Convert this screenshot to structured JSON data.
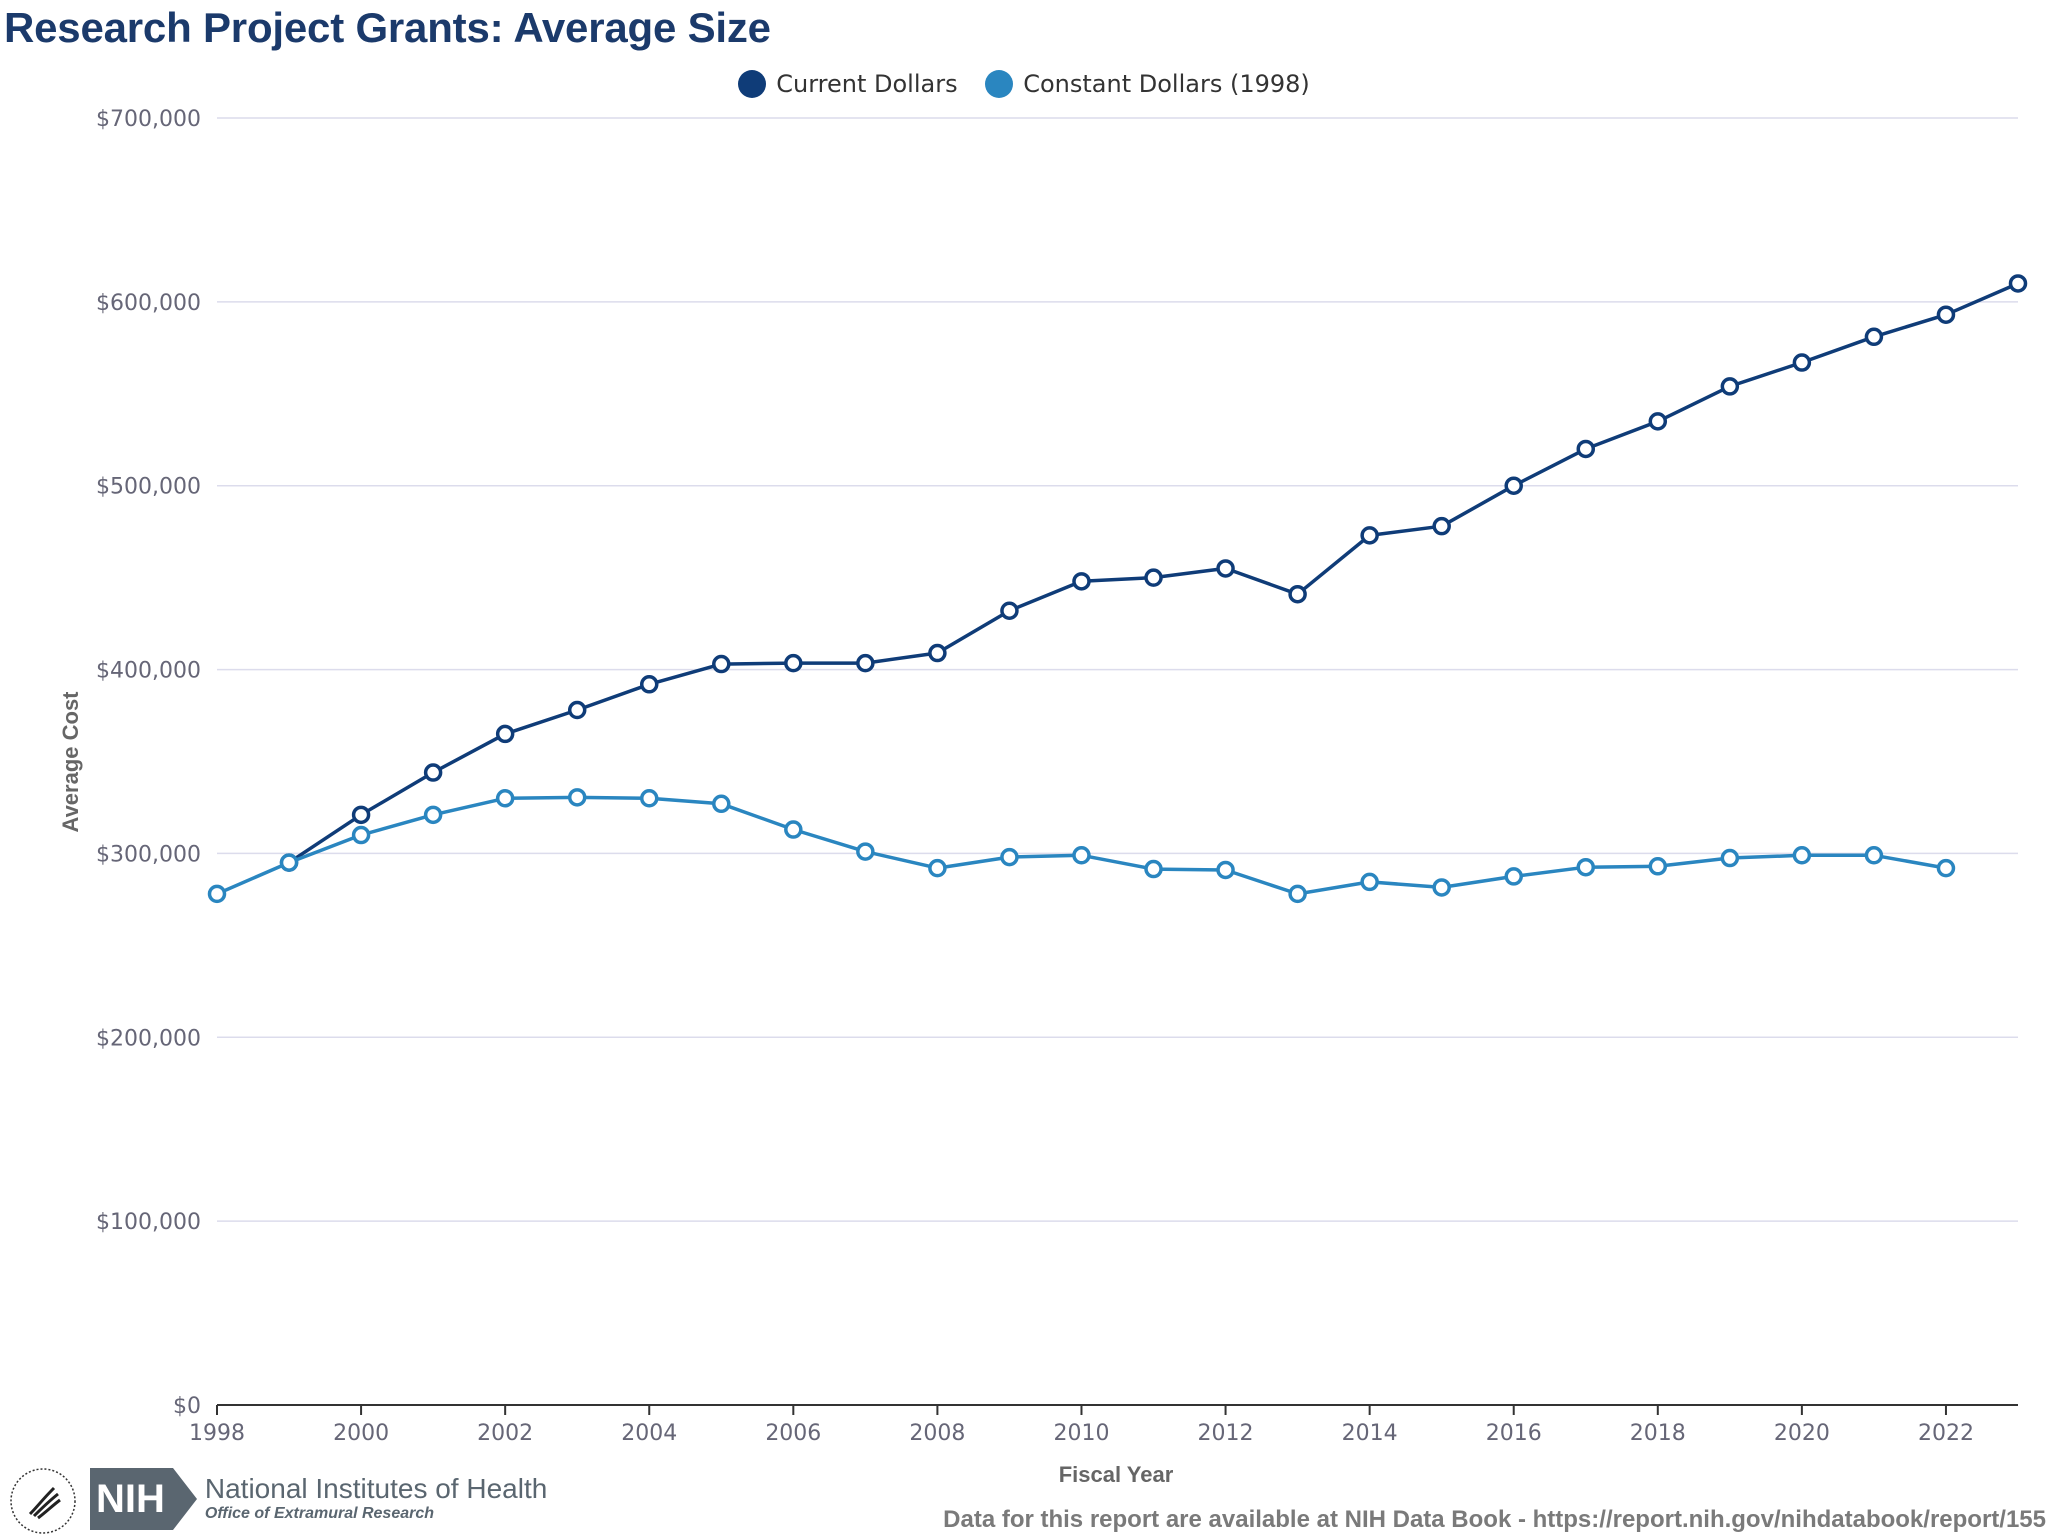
{
  "title": "Research Project Grants: Average Size",
  "footer_note": "Data for this report are available at NIH Data Book - https://report.nih.gov/nihdatabook/report/155",
  "logo": {
    "abbrev": "NIH",
    "name": "National Institutes of Health",
    "office": "Office of Extramural Research"
  },
  "colors": {
    "current": "#0f3c78",
    "constant": "#2a86c0",
    "grid": "#dcdcec",
    "axis_text": "#666677"
  },
  "chart_data": {
    "type": "line",
    "xlabel": "Fiscal Year",
    "ylabel": "Average Cost",
    "xlim": [
      1998,
      2023
    ],
    "ylim": [
      0,
      700000
    ],
    "x_ticks": [
      1998,
      2000,
      2002,
      2004,
      2006,
      2008,
      2010,
      2012,
      2014,
      2016,
      2018,
      2020,
      2022
    ],
    "y_ticks": [
      0,
      100000,
      200000,
      300000,
      400000,
      500000,
      600000,
      700000
    ],
    "y_tick_labels": [
      "$0",
      "$100,000",
      "$200,000",
      "$300,000",
      "$400,000",
      "$500,000",
      "$600,000",
      "$700,000"
    ],
    "legend_position": "top-center",
    "grid": true,
    "series": [
      {
        "name": "Current Dollars",
        "x": [
          1999,
          2000,
          2001,
          2002,
          2003,
          2004,
          2005,
          2006,
          2007,
          2008,
          2009,
          2010,
          2011,
          2012,
          2013,
          2014,
          2015,
          2016,
          2017,
          2018,
          2019,
          2020,
          2021,
          2022,
          2023
        ],
        "values": [
          295000,
          321000,
          344000,
          365000,
          378000,
          392000,
          403000,
          403500,
          403500,
          409000,
          432000,
          448000,
          450000,
          455000,
          441000,
          473000,
          478000,
          500000,
          520000,
          535000,
          554000,
          567000,
          581000,
          593000,
          610000
        ]
      },
      {
        "name": "Constant Dollars (1998)",
        "x": [
          1998,
          1999,
          2000,
          2001,
          2002,
          2003,
          2004,
          2005,
          2006,
          2007,
          2008,
          2009,
          2010,
          2011,
          2012,
          2013,
          2014,
          2015,
          2016,
          2017,
          2018,
          2019,
          2020,
          2021,
          2022
        ],
        "values": [
          278000,
          295000,
          310000,
          321000,
          330000,
          330500,
          330000,
          327000,
          313000,
          301000,
          292000,
          298000,
          299000,
          291500,
          291000,
          278000,
          284500,
          281500,
          287500,
          292500,
          293000,
          297500,
          299000,
          299000,
          292000
        ]
      }
    ]
  }
}
